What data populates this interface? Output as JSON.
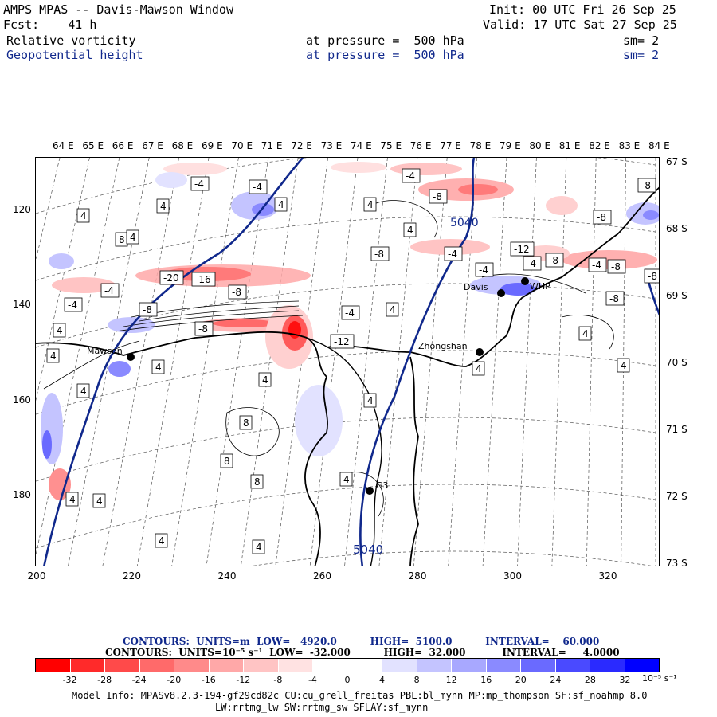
{
  "header": {
    "title": "AMPS MPAS -- Davis-Mawson Window",
    "fcst": "Fcst:    41 h",
    "init": "Init: 00 UTC Fri 26 Sep 25",
    "valid": "Valid: 17 UTC Sat 27 Sep 25",
    "field1": "Relative vorticity",
    "field1_level": "at pressure =  500 hPa",
    "field1_sm": "sm= 2",
    "field2": "Geopotential height",
    "field2_level": "at pressure =  500 hPa",
    "field2_sm": "sm= 2"
  },
  "axes": {
    "lon_labels": [
      "64 E",
      "65 E",
      "66 E",
      "67 E",
      "68 E",
      "69 E",
      "70 E",
      "71 E",
      "72 E",
      "73 E",
      "74 E",
      "75 E",
      "76 E",
      "77 E",
      "78 E",
      "79 E",
      "80 E",
      "81 E",
      "82 E",
      "83 E",
      "84 E"
    ],
    "lat_labels": [
      "67 S",
      "68 S",
      "69 S",
      "70 S",
      "71 S",
      "72 S",
      "73 S"
    ],
    "y_ticks": [
      "120",
      "140",
      "160",
      "180"
    ],
    "x_ticks": [
      "200",
      "220",
      "240",
      "260",
      "280",
      "300",
      "320"
    ]
  },
  "stations": [
    {
      "name": "Mawson"
    },
    {
      "name": "Davis"
    },
    {
      "name": "WHP"
    },
    {
      "name": "Zhongshan"
    },
    {
      "name": "G3"
    }
  ],
  "height_contour_labels": [
    "5040",
    "5040"
  ],
  "vorticity_labels": [
    "-4",
    "-4",
    "-4",
    "-8",
    "-8",
    "-8",
    "-8",
    "-4",
    "-4",
    "-12",
    "-20",
    "-16",
    "-8",
    "-4",
    "-4",
    "-8",
    "-4",
    "-8",
    "-12",
    "-4",
    "-4",
    "-8",
    "-8",
    "-8",
    "-8",
    "4",
    "8",
    "4",
    "4",
    "4",
    "4",
    "4",
    "4",
    "4",
    "4",
    "4",
    "4",
    "4",
    "4",
    "4",
    "4",
    "4",
    "8",
    "8",
    "8",
    "4",
    "4",
    "4",
    "4",
    "4"
  ],
  "colorbar": {
    "heights_line": "CONTOURS:  UNITS=m  LOW=   4920.0          HIGH=  5100.0          INTERVAL=    60.000",
    "vort_line": "CONTOURS:  UNITS=10⁻⁵ s⁻¹  LOW=  -32.000          HIGH=  32.000           INTERVAL=     4.0000",
    "tick_labels": [
      "-32",
      "-28",
      "-24",
      "-20",
      "-16",
      "-12",
      "-8",
      "-4",
      "0",
      "4",
      "8",
      "12",
      "16",
      "20",
      "24",
      "28",
      "32"
    ],
    "units": "10⁻⁵ s⁻¹",
    "colors": [
      "#ff0000",
      "#ff2a2a",
      "#ff4a4a",
      "#ff6a6a",
      "#ff8a8a",
      "#ffa8a8",
      "#ffc4c4",
      "#ffe2e2",
      "#ffffff",
      "#ffffff",
      "#e2e2ff",
      "#c4c4ff",
      "#a8a8ff",
      "#8a8aff",
      "#6a6aff",
      "#4a4aff",
      "#2a2aff",
      "#0000ff"
    ]
  },
  "model_info": {
    "line1": "Model Info: MPASv8.2.3-194-gf29cd82c CU:cu_grell_freitas PBL:bl_mynn MP:mp_thompson SF:sf_noahmp 8.0",
    "line2": "LW:rrtmg_lw SW:rrtmg_sw SFLAY:sf_mynn"
  }
}
